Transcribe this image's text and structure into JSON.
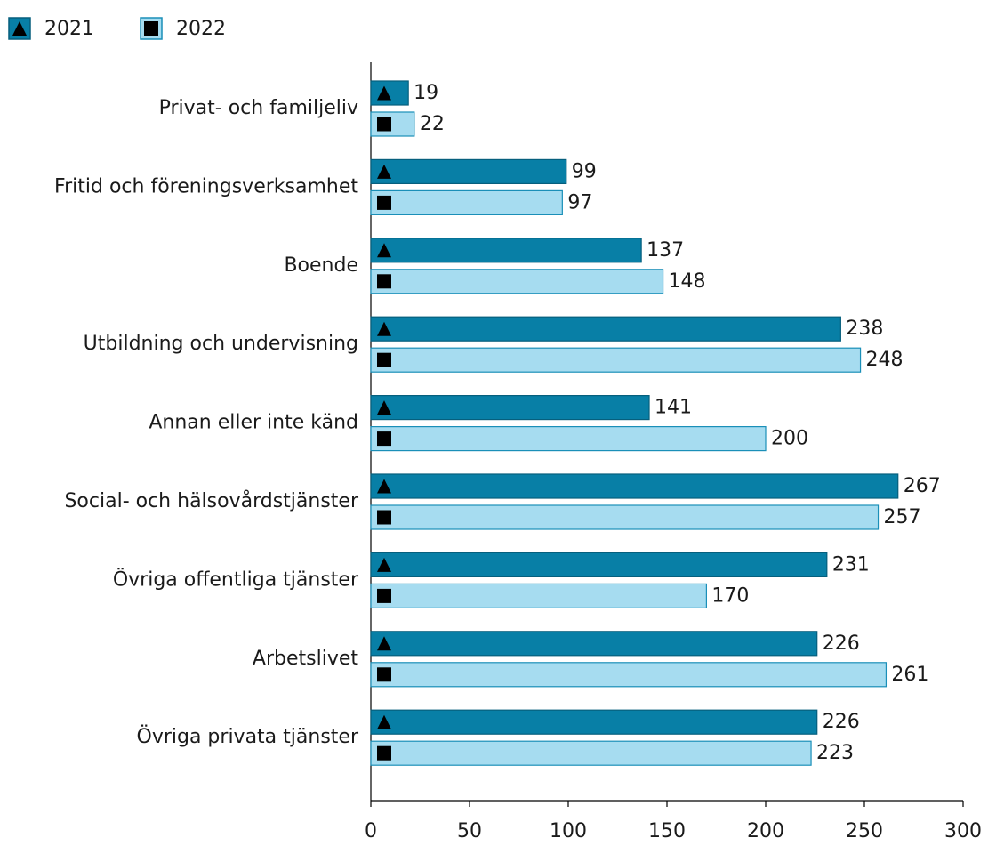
{
  "chart_data": {
    "type": "bar",
    "orientation": "horizontal",
    "categories": [
      "Privat- och familjeliv",
      "Fritid och föreningsverksamhet",
      "Boende",
      "Utbildning och undervisning",
      "Annan eller inte känd",
      "Social- och hälsovårdstjänster",
      "Övriga offentliga tjänster",
      "Arbetslivet",
      "Övriga privata tjänster"
    ],
    "series": [
      {
        "name": "2021",
        "color": "#087fa6",
        "values": [
          19,
          99,
          137,
          238,
          141,
          267,
          231,
          226,
          226
        ]
      },
      {
        "name": "2022",
        "color": "#a6dcf0",
        "values": [
          22,
          97,
          148,
          248,
          200,
          257,
          170,
          261,
          223
        ]
      }
    ],
    "xlim": [
      0,
      300
    ],
    "xticks": [
      0,
      50,
      100,
      150,
      200,
      250,
      300
    ],
    "legend": "top-left"
  }
}
